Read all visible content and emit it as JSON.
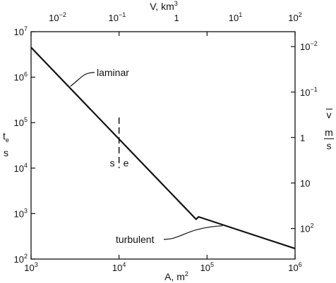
{
  "chart_data": {
    "type": "line",
    "scale": "log-log",
    "grid": false,
    "x_axis": {
      "label_base": "A, m",
      "label_superscript": "2",
      "range": [
        1000,
        1000000
      ],
      "ticks": [
        {
          "value": 1000,
          "base": "10",
          "exp": "3"
        },
        {
          "value": 10000,
          "base": "10",
          "exp": "4"
        },
        {
          "value": 100000,
          "base": "10",
          "exp": "5"
        },
        {
          "value": 1000000,
          "base": "10",
          "exp": "6"
        }
      ]
    },
    "y_axis": {
      "label_main": "t",
      "label_sub": "e",
      "label_unit": "s",
      "range": [
        100,
        10000000
      ],
      "ticks": [
        {
          "value": 10000000,
          "base": "10",
          "exp": "7"
        },
        {
          "value": 1000000,
          "base": "10",
          "exp": "6"
        },
        {
          "value": 100000,
          "base": "10",
          "exp": "5"
        },
        {
          "value": 10000,
          "base": "10",
          "exp": "4"
        },
        {
          "value": 1000,
          "base": "10",
          "exp": "3"
        },
        {
          "value": 100,
          "base": "10",
          "exp": "2"
        }
      ]
    },
    "top_axis": {
      "label_base": "V, km",
      "label_superscript": "3",
      "ticks": [
        {
          "at_x": 2000,
          "base": "10",
          "exp": "−2"
        },
        {
          "at_x": 9500,
          "base": "10",
          "exp": "−1"
        },
        {
          "at_x": 45000,
          "base": "1",
          "exp": ""
        },
        {
          "at_x": 210000,
          "base": "10",
          "exp": "1"
        },
        {
          "at_x": 1000000,
          "base": "10",
          "exp": "2"
        }
      ]
    },
    "right_axis": {
      "label_main": "v",
      "label_unit_num": "m",
      "label_unit_den": "s",
      "ticks": [
        {
          "at_y": 4700000,
          "base": "10",
          "exp": "−2"
        },
        {
          "at_y": 470000,
          "base": "10",
          "exp": "−1"
        },
        {
          "at_y": 47000,
          "base": "1",
          "exp": ""
        },
        {
          "at_y": 4700,
          "base": "10",
          "exp": ""
        },
        {
          "at_y": 470,
          "base": "10",
          "exp": "2"
        }
      ]
    },
    "series": [
      {
        "points": [
          {
            "x": 1000,
            "y": 4500000
          },
          {
            "x": 75000,
            "y": 750
          },
          {
            "x": 80000,
            "y": 850
          },
          {
            "x": 1000000,
            "y": 170
          }
        ]
      }
    ],
    "annotations": [
      {
        "text": "laminar",
        "anchor_x": 2500,
        "anchor_y": 650000
      },
      {
        "text": "turbulent",
        "anchor_x": 150000,
        "anchor_y": 600
      },
      {
        "text": "s",
        "anchor_x": 10000,
        "anchor_y": 13000
      },
      {
        "text": "e",
        "anchor_x": 10000,
        "anchor_y": 13000
      }
    ],
    "divider": {
      "x": 10000,
      "y_from": 10000,
      "y_to": 130000
    }
  }
}
